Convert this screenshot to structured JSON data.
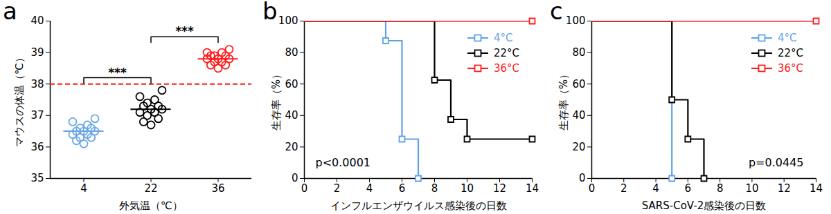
{
  "chart_data": [
    {
      "type": "scatter",
      "title": "a",
      "x_label": "外気温（℃）",
      "y_label": "マウスの体温（℃）",
      "categories": [
        "4",
        "22",
        "36"
      ],
      "values": [
        [
          36.1,
          36.2,
          36.3,
          36.3,
          36.4,
          36.4,
          36.5,
          36.5,
          36.5,
          36.6,
          36.6,
          36.7,
          36.8,
          36.9
        ],
        [
          36.7,
          36.8,
          36.9,
          37.0,
          37.1,
          37.1,
          37.2,
          37.2,
          37.3,
          37.3,
          37.4,
          37.5,
          37.6,
          37.8
        ],
        [
          38.5,
          38.6,
          38.6,
          38.7,
          38.7,
          38.8,
          38.8,
          38.8,
          38.9,
          38.9,
          38.9,
          39.0,
          39.0,
          39.1
        ]
      ],
      "mean": [
        36.5,
        37.2,
        38.8
      ],
      "colors": [
        "#6aa6e6",
        "#000000",
        "#ff1a1a"
      ],
      "marker": "circle",
      "ylim": [
        35,
        40
      ],
      "yticks": [
        35,
        36,
        37,
        38,
        39,
        40
      ],
      "reference_line": {
        "value": 38,
        "color": "#ff1a1a",
        "line_style": "dashed"
      },
      "annotations": [
        {
          "text": "***",
          "from": "4",
          "to": "22"
        },
        {
          "text": "***",
          "from": "22",
          "to": "36"
        }
      ]
    },
    {
      "type": "line",
      "title": "b",
      "x_label": "インフルエンザウイルス感染後の日数",
      "y_label": "生存率（%）",
      "xlim": [
        0,
        14
      ],
      "xticks": [
        0,
        2,
        4,
        6,
        8,
        10,
        12,
        14
      ],
      "ylim": [
        0,
        100
      ],
      "yticks": [
        0,
        20,
        40,
        60,
        80,
        100
      ],
      "legend": "upper right",
      "annotation": "p<0.0001",
      "series": [
        {
          "name": "4°C",
          "color": "#5fa2e8",
          "marker": "square",
          "x": [
            0,
            5,
            6,
            7
          ],
          "values": [
            100,
            87.5,
            25,
            0
          ]
        },
        {
          "name": "22°C",
          "color": "#000000",
          "marker": "square",
          "x": [
            0,
            8,
            9,
            10,
            14
          ],
          "values": [
            100,
            62.5,
            37.5,
            25,
            25
          ]
        },
        {
          "name": "36°C",
          "color": "#ff1a1a",
          "marker": "square",
          "x": [
            0,
            14
          ],
          "values": [
            100,
            100
          ]
        }
      ]
    },
    {
      "type": "line",
      "title": "c",
      "x_label": "SARS-CoV-2感染後の日数",
      "y_label": "生存率（%）",
      "xlim": [
        0,
        14
      ],
      "xticks": [
        0,
        2,
        4,
        6,
        8,
        10,
        12,
        14
      ],
      "ylim": [
        0,
        100
      ],
      "yticks": [
        0,
        20,
        40,
        60,
        80,
        100
      ],
      "legend": "upper right",
      "annotation": "p=0.0445",
      "series": [
        {
          "name": "4°C",
          "color": "#5fa2e8",
          "marker": "square",
          "x": [
            0,
            5
          ],
          "values": [
            100,
            0
          ]
        },
        {
          "name": "22°C",
          "color": "#000000",
          "marker": "square",
          "x": [
            0,
            5,
            6,
            7
          ],
          "values": [
            100,
            50,
            25,
            0
          ]
        },
        {
          "name": "36°C",
          "color": "#ff1a1a",
          "marker": "square",
          "x": [
            0,
            14
          ],
          "values": [
            100,
            100
          ]
        }
      ]
    }
  ]
}
